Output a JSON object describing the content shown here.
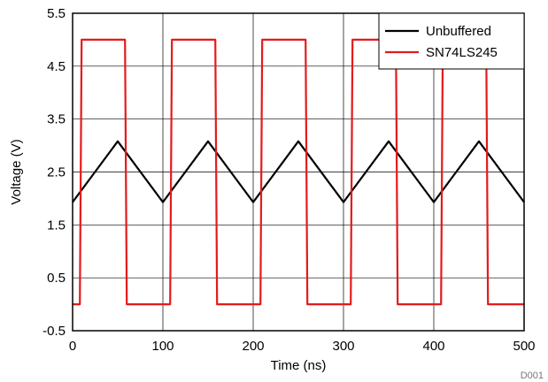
{
  "chart_data": {
    "type": "line",
    "title": "",
    "xlabel": "Time (ns)",
    "ylabel": "Voltage (V)",
    "xlim": [
      0,
      500
    ],
    "ylim": [
      -0.5,
      5.5
    ],
    "xticks": [
      0,
      100,
      200,
      300,
      400,
      500
    ],
    "yticks": [
      -0.5,
      0.5,
      1.5,
      2.5,
      3.5,
      4.5,
      5.5
    ],
    "xtick_labels": [
      "0",
      "100",
      "200",
      "300",
      "400",
      "500"
    ],
    "ytick_labels": [
      "-0.5",
      "0.5",
      "1.5",
      "2.5",
      "3.5",
      "4.5",
      "5.5"
    ],
    "grid": true,
    "legend_position": "top-right",
    "figure_id": "D001",
    "series": [
      {
        "name": "Unbuffered",
        "color": "#000000",
        "x": [
          0,
          50,
          100,
          150,
          200,
          250,
          300,
          350,
          400,
          450,
          500
        ],
        "y": [
          1.93,
          3.08,
          1.93,
          3.08,
          1.93,
          3.08,
          1.93,
          3.08,
          1.93,
          3.08,
          1.93
        ]
      },
      {
        "name": "SN74LS245",
        "color": "#e41a1c",
        "x": [
          0,
          8,
          10,
          58,
          60,
          108,
          110,
          158,
          160,
          208,
          210,
          258,
          260,
          308,
          310,
          358,
          360,
          408,
          410,
          458,
          460,
          500
        ],
        "y": [
          0,
          0,
          5,
          5,
          0,
          0,
          5,
          5,
          0,
          0,
          5,
          5,
          0,
          0,
          5,
          5,
          0,
          0,
          5,
          5,
          0,
          0
        ]
      }
    ]
  }
}
